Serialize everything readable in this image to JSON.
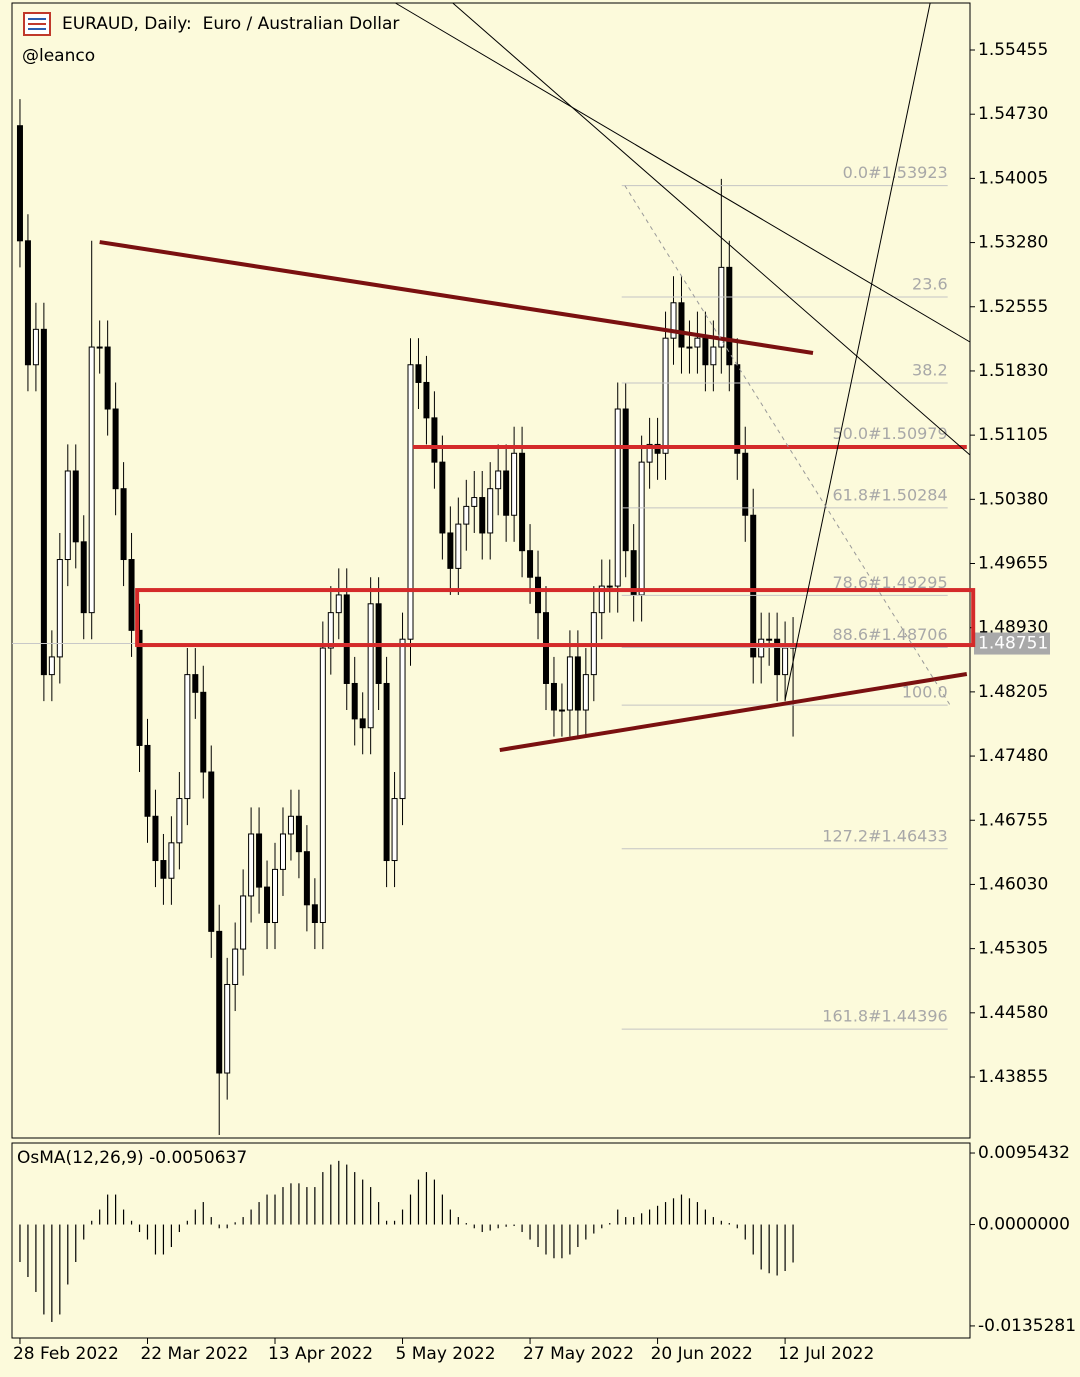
{
  "chart_data": [
    {
      "type": "candlestick",
      "title": "EURAUD, Daily:  Euro / Australian Dollar",
      "subtitle": "@leanco",
      "open": [
        1.546,
        1.533,
        1.519,
        1.523,
        1.484,
        1.486,
        1.497,
        1.507,
        1.499,
        1.491,
        1.521,
        1.521,
        1.514,
        1.505,
        1.497,
        1.489,
        1.476,
        1.468,
        1.463,
        1.461,
        1.465,
        1.47,
        1.484,
        1.482,
        1.473,
        1.455,
        1.439,
        1.449,
        1.453,
        1.459,
        1.466,
        1.46,
        1.456,
        1.462,
        1.466,
        1.468,
        1.464,
        1.458,
        1.456,
        1.487,
        1.491,
        1.493,
        1.483,
        1.479,
        1.478,
        1.492,
        1.483,
        1.463,
        1.47,
        1.488,
        1.519,
        1.517,
        1.513,
        1.508,
        1.5,
        1.496,
        1.501,
        1.503,
        1.504,
        1.5,
        1.505,
        1.507,
        1.502,
        1.509,
        1.498,
        1.495,
        1.491,
        1.483,
        1.48,
        1.48,
        1.486,
        1.48,
        1.484,
        1.491,
        1.494,
        1.494,
        1.514,
        1.498,
        1.493,
        1.508,
        1.51,
        1.509,
        1.522,
        1.526,
        1.521,
        1.521,
        1.522,
        1.519,
        1.521,
        1.53,
        1.519,
        1.509,
        1.502,
        1.486,
        1.488,
        1.488,
        1.484,
        1.487
      ],
      "high": [
        1.549,
        1.536,
        1.526,
        1.526,
        1.489,
        1.5,
        1.51,
        1.51,
        1.502,
        1.533,
        1.524,
        1.524,
        1.517,
        1.508,
        1.5,
        1.492,
        1.479,
        1.471,
        1.466,
        1.468,
        1.473,
        1.487,
        1.487,
        1.485,
        1.476,
        1.458,
        1.452,
        1.456,
        1.462,
        1.469,
        1.469,
        1.463,
        1.465,
        1.469,
        1.471,
        1.471,
        1.467,
        1.461,
        1.49,
        1.494,
        1.496,
        1.496,
        1.486,
        1.482,
        1.495,
        1.495,
        1.486,
        1.473,
        1.491,
        1.522,
        1.522,
        1.52,
        1.516,
        1.511,
        1.503,
        1.504,
        1.506,
        1.507,
        1.507,
        1.508,
        1.51,
        1.51,
        1.512,
        1.512,
        1.501,
        1.498,
        1.494,
        1.486,
        1.483,
        1.489,
        1.489,
        1.487,
        1.494,
        1.497,
        1.497,
        1.517,
        1.517,
        1.501,
        1.511,
        1.513,
        1.513,
        1.525,
        1.529,
        1.529,
        1.524,
        1.525,
        1.525,
        1.524,
        1.54,
        1.533,
        1.522,
        1.512,
        1.505,
        1.491,
        1.491,
        1.491,
        1.49,
        1.4905
      ],
      "low": [
        1.53,
        1.516,
        1.516,
        1.481,
        1.481,
        1.483,
        1.494,
        1.496,
        1.488,
        1.488,
        1.518,
        1.511,
        1.502,
        1.494,
        1.486,
        1.473,
        1.465,
        1.46,
        1.458,
        1.458,
        1.462,
        1.467,
        1.479,
        1.47,
        1.452,
        1.432,
        1.436,
        1.446,
        1.45,
        1.456,
        1.457,
        1.453,
        1.453,
        1.459,
        1.463,
        1.461,
        1.455,
        1.453,
        1.453,
        1.484,
        1.488,
        1.48,
        1.476,
        1.475,
        1.475,
        1.48,
        1.46,
        1.46,
        1.467,
        1.485,
        1.514,
        1.51,
        1.505,
        1.497,
        1.493,
        1.493,
        1.498,
        1.5,
        1.497,
        1.497,
        1.502,
        1.499,
        1.499,
        1.495,
        1.492,
        1.488,
        1.48,
        1.477,
        1.477,
        1.477,
        1.477,
        1.477,
        1.481,
        1.488,
        1.491,
        1.491,
        1.495,
        1.49,
        1.49,
        1.505,
        1.506,
        1.506,
        1.519,
        1.518,
        1.518,
        1.518,
        1.516,
        1.516,
        1.518,
        1.516,
        1.506,
        1.499,
        1.483,
        1.483,
        1.485,
        1.481,
        1.481,
        1.477
      ],
      "close": [
        1.533,
        1.519,
        1.523,
        1.484,
        1.486,
        1.497,
        1.507,
        1.499,
        1.491,
        1.521,
        1.521,
        1.514,
        1.505,
        1.497,
        1.489,
        1.476,
        1.468,
        1.463,
        1.461,
        1.465,
        1.47,
        1.484,
        1.482,
        1.473,
        1.455,
        1.439,
        1.449,
        1.453,
        1.459,
        1.466,
        1.46,
        1.456,
        1.462,
        1.466,
        1.468,
        1.464,
        1.458,
        1.456,
        1.487,
        1.491,
        1.493,
        1.483,
        1.479,
        1.478,
        1.492,
        1.483,
        1.463,
        1.47,
        1.488,
        1.519,
        1.517,
        1.513,
        1.508,
        1.5,
        1.496,
        1.501,
        1.503,
        1.504,
        1.5,
        1.505,
        1.507,
        1.502,
        1.509,
        1.498,
        1.495,
        1.491,
        1.483,
        1.48,
        1.48,
        1.486,
        1.48,
        1.484,
        1.491,
        1.494,
        1.494,
        1.514,
        1.498,
        1.493,
        1.508,
        1.51,
        1.509,
        1.522,
        1.526,
        1.521,
        1.521,
        1.522,
        1.519,
        1.521,
        1.53,
        1.519,
        1.509,
        1.502,
        1.486,
        1.488,
        1.488,
        1.484,
        1.487,
        1.4875
      ],
      "bull_color": "#ffffff",
      "bear_color": "#000000",
      "xlim": [
        -1,
        119.2
      ],
      "xticks": [
        {
          "value": 0,
          "label": "28 Feb 2022"
        },
        {
          "value": 16,
          "label": "22 Mar 2022"
        },
        {
          "value": 32,
          "label": "13 Apr 2022"
        },
        {
          "value": 48,
          "label": "5 May 2022"
        },
        {
          "value": 64,
          "label": "27 May 2022"
        },
        {
          "value": 80,
          "label": "20 Jun 2022"
        },
        {
          "value": 96,
          "label": "12 Jul 2022"
        }
      ],
      "ylim": [
        1.43166,
        1.55986
      ],
      "yticks": [
        1.55455,
        {
          "value": 1.5473,
          "label": "1.54730"
        },
        1.54005,
        {
          "value": 1.5328,
          "label": "1.53280"
        },
        1.52555,
        {
          "value": 1.5183,
          "label": "1.51830"
        },
        1.51105,
        {
          "value": 1.5038,
          "label": "1.50380"
        },
        1.49655,
        {
          "value": 1.4893,
          "label": "1.48930"
        },
        1.48205,
        {
          "value": 1.4748,
          "label": "1.47480"
        },
        1.46755,
        {
          "value": 1.4603,
          "label": "1.46030"
        },
        1.45305,
        {
          "value": 1.4458,
          "label": "1.44580"
        },
        1.43855
      ],
      "current_price": 1.48751,
      "fib_x": [
        75.5,
        116.4
      ],
      "fib_levels": [
        {
          "label": "0.0#1.53923",
          "price": 1.53923
        },
        {
          "label": "23.6",
          "price": 1.52665
        },
        {
          "label": "38.2",
          "price": 1.51694
        },
        {
          "label": "50.0#1.50979",
          "price": 1.50979
        },
        {
          "label": "61.8#1.50284",
          "price": 1.50284
        },
        {
          "label": "78.6#1.49295",
          "price": 1.49295
        },
        {
          "label": "88.6#1.48706",
          "price": 1.48706
        },
        {
          "label": "100.0",
          "price": 1.48056
        },
        {
          "label": "127.2#1.46433",
          "price": 1.46433
        },
        {
          "label": "161.8#1.44396",
          "price": 1.44396
        }
      ],
      "trendlines": [
        {
          "color": "#7a1010",
          "width": 4,
          "points": [
            [
              10.0,
              1.53286
            ],
            [
              99.5,
              1.52033
            ]
          ]
        },
        {
          "color": "#7a1010",
          "width": 4,
          "points": [
            [
              60.2,
              1.47548
            ],
            [
              118.8,
              1.48407
            ]
          ]
        },
        {
          "color": "#d42a2a",
          "width": 4,
          "points": [
            [
              49.3,
              1.50971
            ],
            [
              118.8,
              1.50971
            ]
          ]
        },
        {
          "color": "#000000",
          "width": 1,
          "points": [
            [
              47.1,
              1.55986
            ],
            [
              119.2,
              1.52157
            ]
          ]
        },
        {
          "color": "#000000",
          "width": 1,
          "points": [
            [
              54.3,
              1.55986
            ],
            [
              119.2,
              1.5088
            ]
          ]
        },
        {
          "color": "#000000",
          "width": 1,
          "points": [
            [
              96.0,
              1.48113
            ],
            [
              114.2,
              1.55986
            ]
          ]
        },
        {
          "color": "#999999",
          "width": 1,
          "dash": true,
          "points": [
            [
              75.9,
              1.53923
            ],
            [
              116.7,
              1.48056
            ]
          ]
        }
      ],
      "zones": [
        {
          "color": "#d42a2a",
          "x": [
            14.7,
            119.6
          ],
          "price": [
            1.49355,
            1.48734
          ]
        }
      ]
    },
    {
      "type": "bar",
      "title": "OsMA(12,26,9) -0.0050637",
      "color": "#000000",
      "values": [
        -0.005,
        -0.007,
        -0.009,
        -0.012,
        -0.013,
        -0.012,
        -0.008,
        -0.005,
        -0.002,
        0.0005,
        0.002,
        0.004,
        0.004,
        0.002,
        0.0005,
        -0.001,
        -0.002,
        -0.004,
        -0.004,
        -0.003,
        -0.001,
        0.0005,
        0.002,
        0.003,
        0.001,
        -0.0005,
        -0.0005,
        0.0003,
        0.001,
        0.002,
        0.003,
        0.004,
        0.004,
        0.005,
        0.0055,
        0.0055,
        0.005,
        0.005,
        0.007,
        0.008,
        0.0085,
        0.008,
        0.007,
        0.006,
        0.005,
        0.003,
        0.0005,
        0.0005,
        0.002,
        0.004,
        0.006,
        0.007,
        0.006,
        0.004,
        0.002,
        0.001,
        0.0002,
        -0.0005,
        -0.001,
        -0.0008,
        -0.0005,
        -0.0003,
        -0.0002,
        -0.001,
        -0.002,
        -0.003,
        -0.004,
        -0.0045,
        -0.0045,
        -0.004,
        -0.003,
        -0.002,
        -0.0012,
        -0.0005,
        0.0002,
        0.002,
        0.001,
        0.001,
        0.0015,
        0.002,
        0.0025,
        0.003,
        0.0035,
        0.004,
        0.0035,
        0.003,
        0.002,
        0.001,
        0.0005,
        0.0002,
        -0.0005,
        -0.002,
        -0.004,
        -0.006,
        -0.0065,
        -0.0068,
        -0.0062,
        -0.0050637
      ],
      "xlim": [
        -1,
        119.2
      ],
      "ylim": [
        -0.01514,
        0.01088
      ],
      "yticks": [
        0.0095432,
        {
          "value": 0,
          "label": "0.0000000"
        },
        -0.0135281
      ]
    }
  ]
}
